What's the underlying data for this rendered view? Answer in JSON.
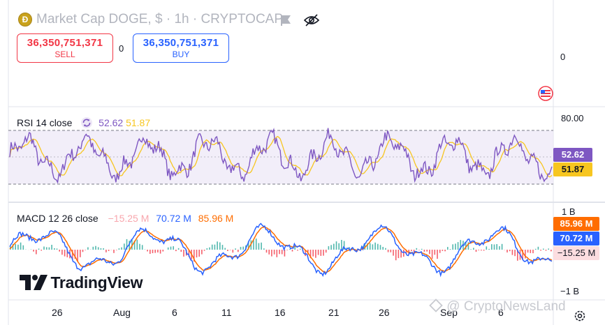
{
  "header": {
    "coin_symbol": "Ð",
    "title": "Market Cap DOGE, $ · 1h · CRYPTOCAP",
    "sell": {
      "value": "36,350,751,371",
      "label": "SELL"
    },
    "spread": "0",
    "buy": {
      "value": "36,350,751,371",
      "label": "BUY"
    },
    "icons": [
      "flag-icon",
      "eye-off-icon",
      "us-flag-icon"
    ]
  },
  "price_axis": {
    "zero_label": "0"
  },
  "rsi": {
    "legend_name": "RSI 14 close",
    "value_rsi": "52.62",
    "value_ma": "51.87",
    "level_label": "80.00",
    "badge_rsi": "52.62",
    "badge_ma": "51.87",
    "colors": {
      "rsi": "#7e57c2",
      "ma": "#f7c620",
      "band": "#ede7f6"
    }
  },
  "macd": {
    "legend_name": "MACD 12 26 close",
    "value_hist": "−15.25 M",
    "value_macd": "70.72 M",
    "value_signal": "85.96 M",
    "axis_top": "1 B",
    "axis_bottom": "−1 B",
    "badge_signal": "85.96 M",
    "badge_macd": "70.72 M",
    "badge_hist": "−15.25 M",
    "colors": {
      "macd": "#2962ff",
      "signal": "#ff6d00",
      "hist_up": "#26a69a",
      "hist_down": "#f23645"
    }
  },
  "time_axis": {
    "labels": [
      "26",
      "Aug",
      "6",
      "11",
      "16",
      "21",
      "26",
      "Sep",
      "6"
    ]
  },
  "branding": {
    "logo_text": "TradingView",
    "watermark": "CryptoNewsLand"
  }
}
